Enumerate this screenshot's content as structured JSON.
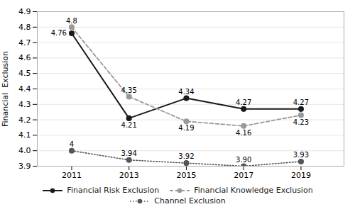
{
  "chart_data": {
    "type": "line",
    "x": [
      2011,
      2013,
      2015,
      2017,
      2019
    ],
    "xlim": [
      2009.8,
      2020.5
    ],
    "xticks": [
      2011,
      2013,
      2015,
      2017,
      2019
    ],
    "ylim": [
      3.9,
      4.9
    ],
    "yticks": [
      3.9,
      {
        "value": 4.0,
        "label": "4.0"
      },
      4.1,
      4.2,
      4.3,
      4.4,
      4.5,
      4.6,
      4.7,
      4.8,
      4.9
    ],
    "ylabel": "Financial  Exclusion",
    "grid": "y",
    "legend": "bottom",
    "data_labels": true,
    "series": [
      {
        "name": "Financial Risk Exclusion",
        "color": "#1a1a1a",
        "marker": "circle",
        "line_style": "solid",
        "values": [
          4.76,
          4.21,
          4.34,
          4.27,
          4.27
        ]
      },
      {
        "name": "Financial Knowledge Exclusion",
        "color": "#999999",
        "marker": "circle",
        "line_style": "dashed",
        "values": [
          4.8,
          4.35,
          4.19,
          4.16,
          4.23
        ]
      },
      {
        "name": "Channel Exclusion",
        "color": "#555555",
        "marker": "circle",
        "line_style": "dotted",
        "values": [
          4.0,
          3.94,
          3.92,
          3.9,
          3.93
        ],
        "value_labels": [
          "4",
          "3.94",
          "3.92",
          "3.90",
          "3.93"
        ]
      }
    ]
  }
}
